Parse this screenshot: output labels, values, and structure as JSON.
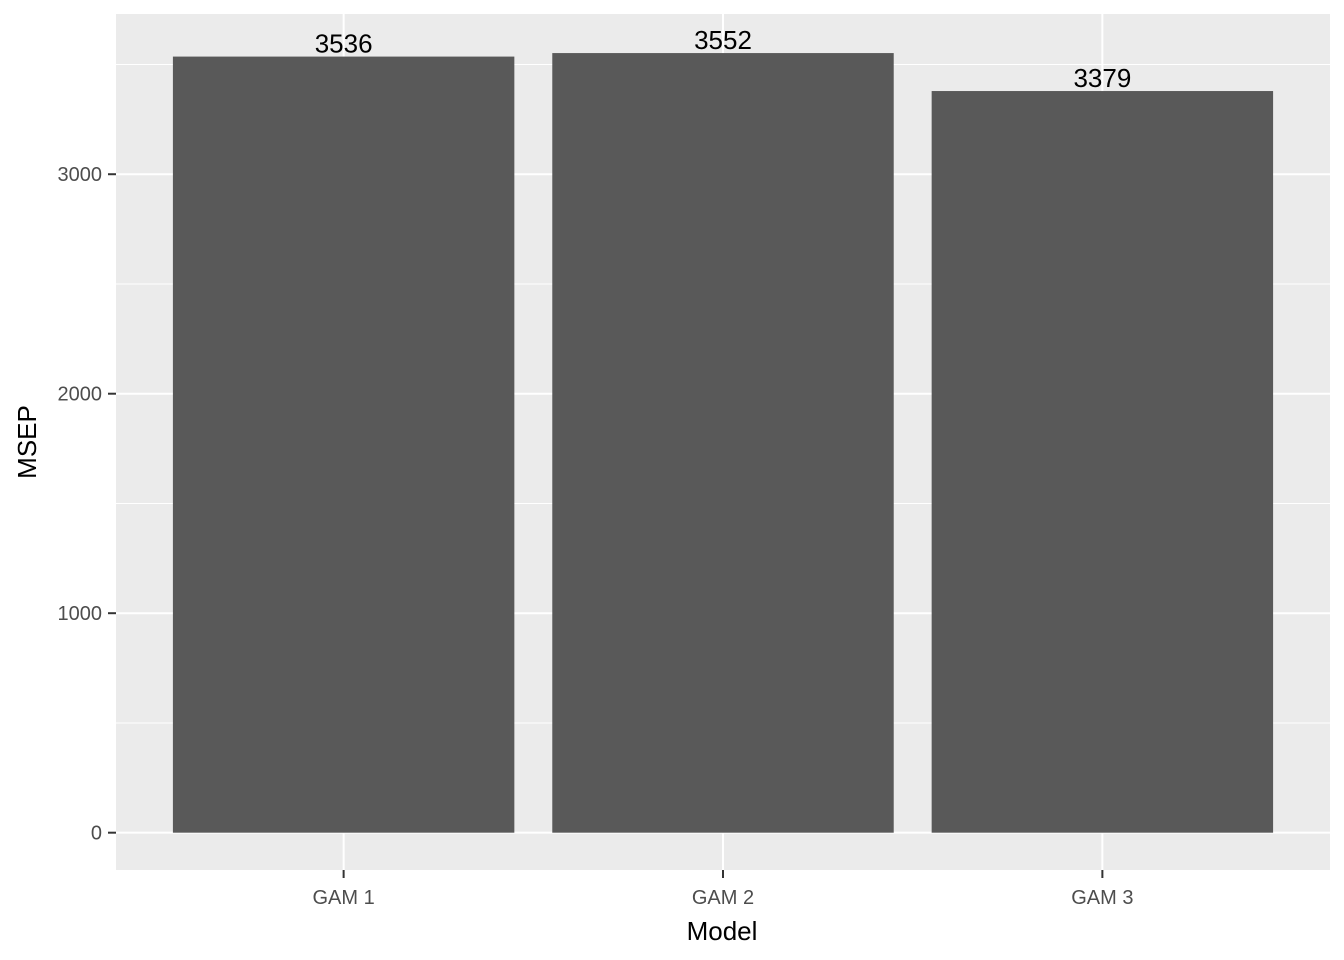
{
  "chart_data": {
    "type": "bar",
    "categories": [
      "GAM 1",
      "GAM 2",
      "GAM 3"
    ],
    "values": [
      3536,
      3552,
      3379
    ],
    "data_labels": [
      "3536",
      "3552",
      "3379"
    ],
    "title": "",
    "xlabel": "Model",
    "ylabel": "MSEP",
    "ylim": [
      -170,
      3730
    ],
    "y_major_ticks": [
      0,
      1000,
      2000,
      3000
    ],
    "y_tick_labels": [
      "0",
      "1000",
      "2000",
      "3000"
    ],
    "y_minor_ticks": [
      500,
      1500,
      2500,
      3500
    ],
    "grid": true,
    "legend": "none"
  },
  "colors": {
    "panel_background": "#ebebeb",
    "gridline": "#ffffff",
    "bar_fill": "#595959",
    "tick_text": "#4d4d4d",
    "tick_mark": "#333333",
    "label_text": "#000000"
  }
}
